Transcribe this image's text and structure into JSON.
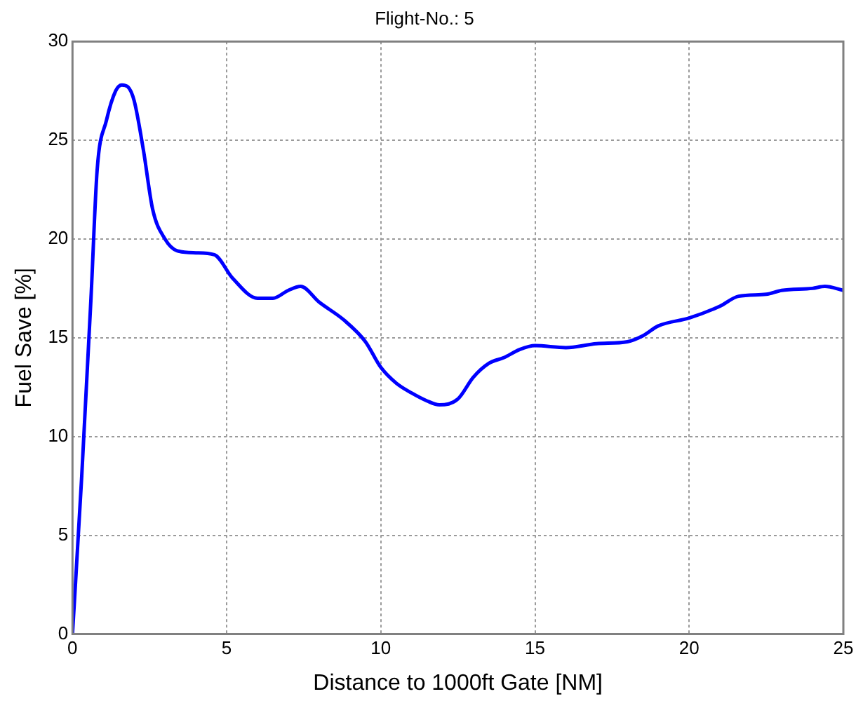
{
  "chart_data": {
    "type": "line",
    "title": "Flight-No.: 5",
    "xlabel": "Distance to 1000ft Gate [NM]",
    "ylabel": "Fuel Save [%]",
    "xlim": [
      0,
      25
    ],
    "xticks": [
      0,
      5,
      10,
      15,
      20,
      25
    ],
    "ylim": [
      0,
      30
    ],
    "yticks": [
      0,
      5,
      10,
      15,
      20,
      25,
      30
    ],
    "grid": true,
    "legend": false,
    "marker": "none",
    "line_style": "solid",
    "series": [
      {
        "color": "#0000ff",
        "x": [
          0,
          0.3,
          0.6,
          0.8,
          1.1,
          1.4,
          1.6,
          1.8,
          2.0,
          2.3,
          2.6,
          3.0,
          3.4,
          4.0,
          4.6,
          5.2,
          6.0,
          6.5,
          7.0,
          7.4,
          8.0,
          8.8,
          9.5,
          10,
          10.5,
          11,
          11.5,
          11.9,
          12.5,
          13,
          13.5,
          14,
          14.5,
          15,
          16,
          17,
          18,
          18.5,
          19,
          20,
          21,
          21.6,
          22.5,
          23,
          24,
          24.4,
          25
        ],
        "values": [
          0,
          8,
          17,
          23.5,
          26,
          27.5,
          27.8,
          27.7,
          27,
          24.5,
          21.5,
          20,
          19.4,
          19.3,
          19.2,
          18,
          17,
          17,
          17.4,
          17.6,
          16.8,
          15.9,
          14.8,
          13.5,
          12.7,
          12.2,
          11.8,
          11.6,
          11.9,
          13,
          13.7,
          14,
          14.4,
          14.6,
          14.5,
          14.7,
          14.8,
          15.1,
          15.6,
          16,
          16.6,
          17.1,
          17.2,
          17.4,
          17.5,
          17.6,
          17.4
        ]
      }
    ]
  }
}
